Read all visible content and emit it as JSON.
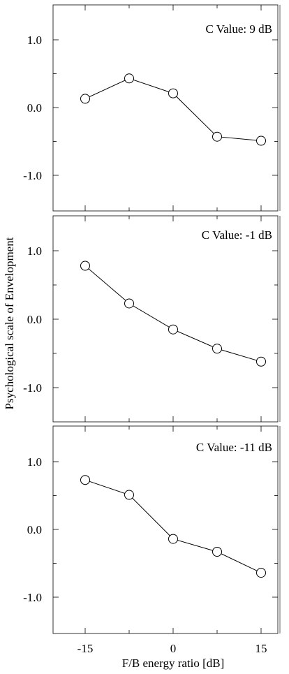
{
  "figure": {
    "ylabel": "Psychological scale of Envelopment",
    "xlabel": "F/B energy ratio [dB]"
  },
  "chart_data": [
    {
      "type": "line",
      "annotation": "C Value: 9 dB",
      "x": [
        -15,
        -7.5,
        0,
        7.5,
        15
      ],
      "y": [
        0.13,
        0.43,
        0.21,
        -0.43,
        -0.49
      ],
      "xticks": [
        "-15",
        "0",
        "15"
      ],
      "yticks": [
        "1.0",
        "0.0",
        "-1.0"
      ],
      "xlim": [
        -20,
        20
      ],
      "ylim": [
        -1.5,
        1.4
      ]
    },
    {
      "type": "line",
      "annotation": "C Value: -1 dB",
      "x": [
        -15,
        -7.5,
        0,
        7.5,
        15
      ],
      "y": [
        0.78,
        0.23,
        -0.15,
        -0.43,
        -0.62
      ],
      "xticks": [
        "-15",
        "0",
        "15"
      ],
      "yticks": [
        "1.0",
        "0.0",
        "-1.0"
      ],
      "xlim": [
        -20,
        20
      ],
      "ylim": [
        -1.5,
        1.45
      ]
    },
    {
      "type": "line",
      "annotation": "C Value: -11 dB",
      "x": [
        -15,
        -7.5,
        0,
        7.5,
        15
      ],
      "y": [
        0.73,
        0.51,
        -0.14,
        -0.33,
        -0.64
      ],
      "xticks": [
        "-15",
        "0",
        "15"
      ],
      "yticks": [
        "1.0",
        "0.0",
        "-1.0"
      ],
      "xlim": [
        -20,
        20
      ],
      "ylim": [
        -1.5,
        1.45
      ]
    }
  ]
}
